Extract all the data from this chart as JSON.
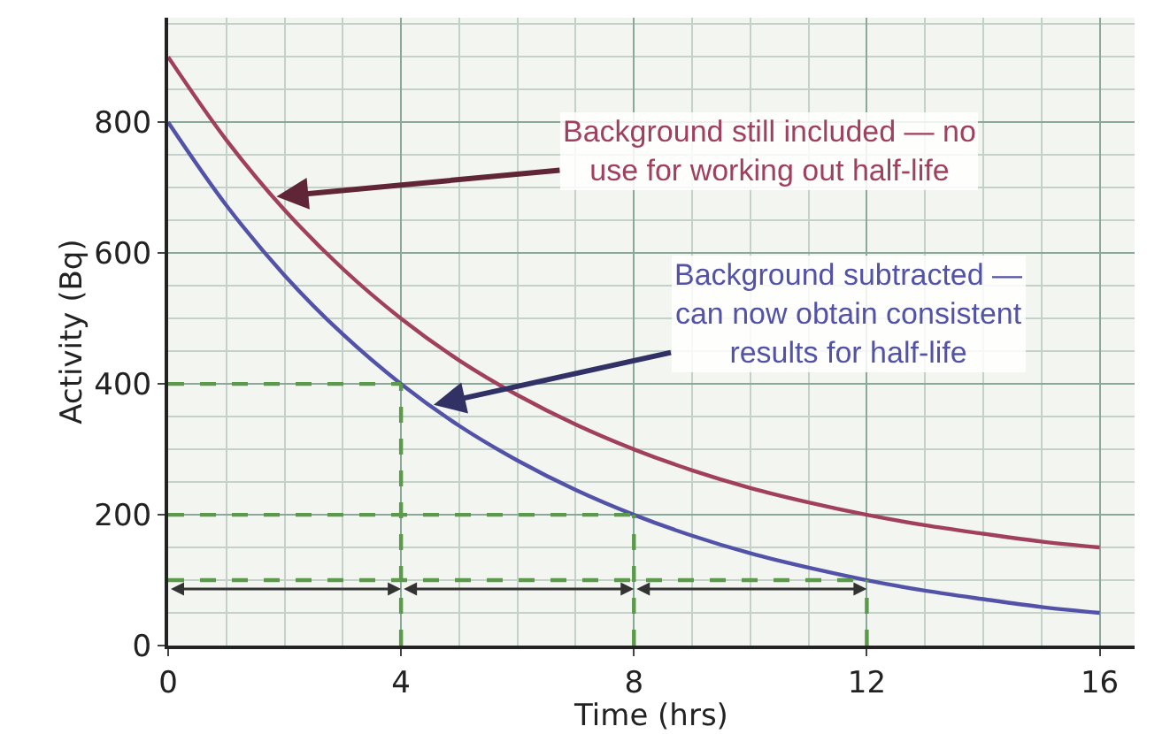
{
  "chart_data": {
    "type": "line",
    "xlabel": "Time (hrs)",
    "ylabel": "Activity (Bq)",
    "x": [
      0,
      1,
      2,
      3,
      4,
      5,
      6,
      7,
      8,
      9,
      10,
      11,
      12,
      13,
      14,
      15,
      16
    ],
    "series": [
      {
        "color": "#a0405e",
        "values": [
          900,
          773,
          666,
          576,
          500,
          436,
          383,
          338,
          300,
          268,
          241,
          219,
          200,
          184,
          171,
          159,
          150
        ]
      },
      {
        "color": "#5252a8",
        "values": [
          800,
          673,
          566,
          476,
          400,
          336,
          283,
          238,
          200,
          168,
          141,
          119,
          100,
          84,
          71,
          59,
          50
        ]
      }
    ],
    "xlim": [
      0,
      16.6
    ],
    "ylim": [
      0,
      960
    ],
    "xticks": [
      0,
      4,
      8,
      12,
      16
    ],
    "yticks": [
      0,
      200,
      400,
      600,
      800
    ],
    "grid": true,
    "marker": "none",
    "line_style": "solid",
    "ref_lines": [
      {
        "axis": "y",
        "value": 400,
        "color": "#5a9a4a",
        "line_style": "dashed"
      },
      {
        "axis": "y",
        "value": 200,
        "color": "#5a9a4a",
        "line_style": "dashed"
      },
      {
        "axis": "y",
        "value": 100,
        "color": "#5a9a4a",
        "line_style": "dashed"
      },
      {
        "axis": "x",
        "value": 4,
        "color": "#5a9a4a",
        "line_style": "dashed"
      },
      {
        "axis": "x",
        "value": 8,
        "color": "#5a9a4a",
        "line_style": "dashed"
      },
      {
        "axis": "x",
        "value": 12,
        "color": "#5a9a4a",
        "line_style": "dashed"
      }
    ],
    "annotations": [
      {
        "text": "Background still included — no use for working out half-life",
        "x": 1.8,
        "y": 686
      },
      {
        "text": "Background subtracted — can now obtain consistent results for half-life",
        "x": 4.5,
        "y": 367
      }
    ]
  }
}
